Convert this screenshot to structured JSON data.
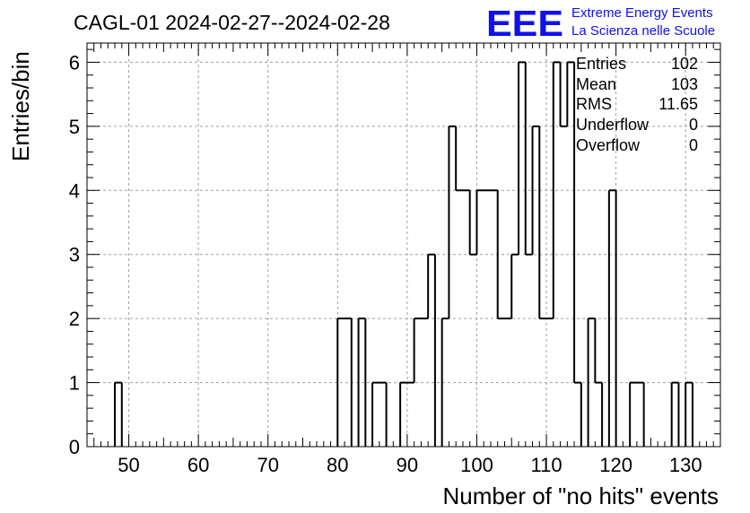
{
  "chart_data": {
    "type": "bar",
    "title": "CAGL-01 2024-02-27--2024-02-28",
    "xlabel": "Number of \"no hits\" events",
    "ylabel": "Entries/bin",
    "xlim": [
      44,
      135
    ],
    "ylim": [
      0,
      6.3
    ],
    "grid": true,
    "x_ticks": [
      "50",
      "60",
      "70",
      "80",
      "90",
      "100",
      "110",
      "120",
      "130"
    ],
    "y_ticks": [
      "0",
      "1",
      "2",
      "3",
      "4",
      "5",
      "6"
    ],
    "bin_width": 1,
    "bins": [
      {
        "x": 48,
        "count": 1
      },
      {
        "x": 80,
        "count": 2
      },
      {
        "x": 81,
        "count": 2
      },
      {
        "x": 83,
        "count": 2
      },
      {
        "x": 85,
        "count": 1
      },
      {
        "x": 86,
        "count": 1
      },
      {
        "x": 89,
        "count": 1
      },
      {
        "x": 90,
        "count": 1
      },
      {
        "x": 91,
        "count": 2
      },
      {
        "x": 92,
        "count": 2
      },
      {
        "x": 93,
        "count": 3
      },
      {
        "x": 95,
        "count": 2
      },
      {
        "x": 96,
        "count": 5
      },
      {
        "x": 97,
        "count": 4
      },
      {
        "x": 98,
        "count": 4
      },
      {
        "x": 99,
        "count": 3
      },
      {
        "x": 100,
        "count": 4
      },
      {
        "x": 101,
        "count": 4
      },
      {
        "x": 102,
        "count": 4
      },
      {
        "x": 103,
        "count": 2
      },
      {
        "x": 104,
        "count": 2
      },
      {
        "x": 105,
        "count": 3
      },
      {
        "x": 106,
        "count": 6
      },
      {
        "x": 107,
        "count": 3
      },
      {
        "x": 108,
        "count": 5
      },
      {
        "x": 109,
        "count": 2
      },
      {
        "x": 110,
        "count": 2
      },
      {
        "x": 111,
        "count": 6
      },
      {
        "x": 112,
        "count": 5
      },
      {
        "x": 113,
        "count": 6
      },
      {
        "x": 114,
        "count": 1
      },
      {
        "x": 116,
        "count": 2
      },
      {
        "x": 117,
        "count": 1
      },
      {
        "x": 119,
        "count": 4
      },
      {
        "x": 122,
        "count": 1
      },
      {
        "x": 123,
        "count": 1
      },
      {
        "x": 128,
        "count": 1
      },
      {
        "x": 130,
        "count": 1
      }
    ],
    "stats": {
      "entries_label": "Entries",
      "entries": "102",
      "mean_label": "Mean",
      "mean": "103",
      "rms_label": "RMS",
      "rms": "11.65",
      "underflow_label": "Underflow",
      "underflow": "0",
      "overflow_label": "Overflow",
      "overflow": "0"
    }
  },
  "logo": {
    "mark": "EEE",
    "line1": "Extreme Energy Events",
    "line2": "La Scienza nelle Scuole",
    "mark_color": "#1010ee",
    "text_color": "#1010ee"
  },
  "colors": {
    "line": "#000000",
    "grid": "#a0a0a0",
    "background": "#ffffff"
  }
}
